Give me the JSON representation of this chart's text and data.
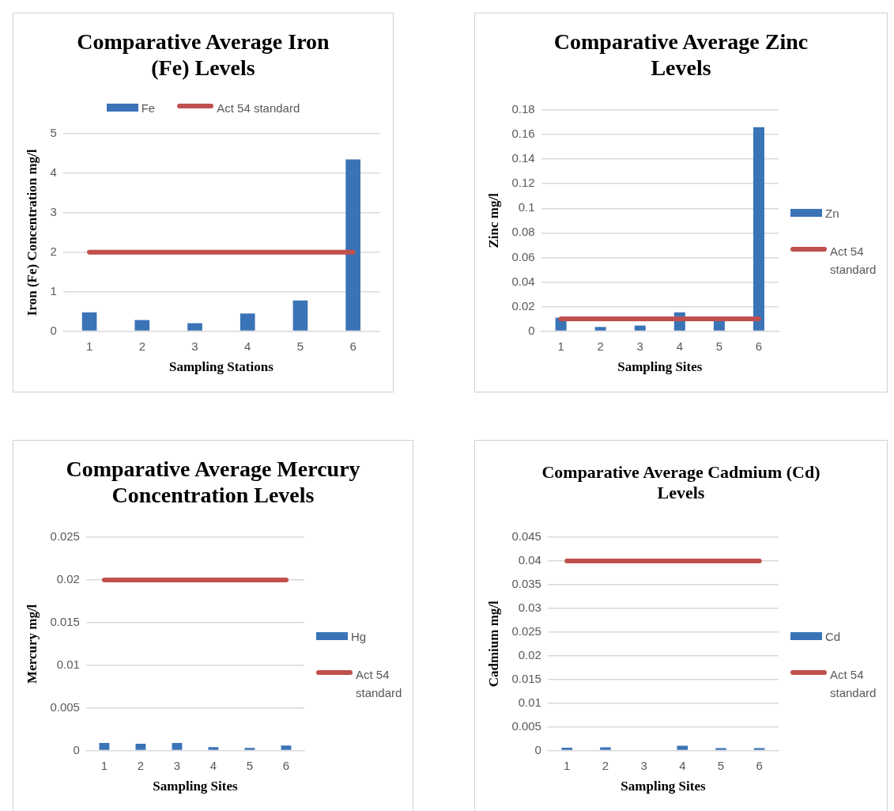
{
  "chart_data": [
    {
      "type": "bar",
      "title": "Comparative Average Iron (Fe) Levels",
      "xlabel": "Sampling Stations",
      "ylabel": "Iron (Fe) Concentration mg/l",
      "categories": [
        "1",
        "2",
        "3",
        "4",
        "5",
        "6"
      ],
      "series": [
        {
          "name": "Fe",
          "color": "#3b73b7",
          "values": [
            0.48,
            0.28,
            0.2,
            0.45,
            0.78,
            4.35
          ]
        },
        {
          "name": "Act 54 standard",
          "type": "line",
          "color": "#c0504d",
          "values": [
            2,
            2,
            2,
            2,
            2,
            2
          ]
        }
      ],
      "ylim": [
        0,
        5
      ],
      "yticks": [
        0,
        1,
        2,
        3,
        4,
        5
      ],
      "grid": "y",
      "legend": "top"
    },
    {
      "type": "bar",
      "title": "Comparative Average Zinc Levels",
      "xlabel": "Sampling Sites",
      "ylabel": "Zinc mg/l",
      "categories": [
        "1",
        "2",
        "3",
        "4",
        "5",
        "6"
      ],
      "series": [
        {
          "name": "Zn",
          "color": "#3b73b7",
          "values": [
            0.011,
            0.0034,
            0.0045,
            0.0153,
            0.009,
            0.166
          ]
        },
        {
          "name": "Act 54 standard",
          "type": "line",
          "color": "#c0504d",
          "values": [
            0.01,
            0.01,
            0.01,
            0.01,
            0.01,
            0.01
          ]
        }
      ],
      "ylim": [
        0,
        0.18
      ],
      "yticks": [
        0,
        0.02,
        0.04,
        0.06,
        0.08,
        0.1,
        0.12,
        0.14,
        0.16,
        0.18
      ],
      "grid": "y",
      "legend": "right"
    },
    {
      "type": "bar",
      "title": "Comparative Average Mercury Concentration Levels",
      "xlabel": "Sampling Sites",
      "ylabel": "Mercury mg/l",
      "categories": [
        "1",
        "2",
        "3",
        "4",
        "5",
        "6"
      ],
      "series": [
        {
          "name": "Hg",
          "color": "#3b73b7",
          "values": [
            0.0009,
            0.0008,
            0.0009,
            0.0004,
            0.0003,
            0.0006
          ]
        },
        {
          "name": "Act 54 standard",
          "type": "line",
          "color": "#c0504d",
          "values": [
            0.02,
            0.02,
            0.02,
            0.02,
            0.02,
            0.02
          ]
        }
      ],
      "ylim": [
        0,
        0.025
      ],
      "yticks": [
        0,
        0.005,
        0.01,
        0.015,
        0.02,
        0.025
      ],
      "grid": "y",
      "legend": "right"
    },
    {
      "type": "bar",
      "title": "Comparative Average Cadmium (Cd) Levels",
      "xlabel": "Sampling Sites",
      "ylabel": "Cadmium mg/l",
      "categories": [
        "1",
        "2",
        "3",
        "4",
        "5",
        "6"
      ],
      "series": [
        {
          "name": "Cd",
          "color": "#3b73b7",
          "values": [
            0.0006,
            0.0007,
            0,
            0.001,
            0.0005,
            0.0005
          ]
        },
        {
          "name": "Act 54 standard",
          "type": "line",
          "color": "#c0504d",
          "values": [
            0.04,
            0.04,
            0.04,
            0.04,
            0.04,
            0.04
          ]
        }
      ],
      "ylim": [
        0,
        0.045
      ],
      "yticks": [
        0,
        0.005,
        0.01,
        0.015,
        0.02,
        0.025,
        0.03,
        0.035,
        0.04,
        0.045
      ],
      "grid": "y",
      "legend": "right"
    }
  ]
}
